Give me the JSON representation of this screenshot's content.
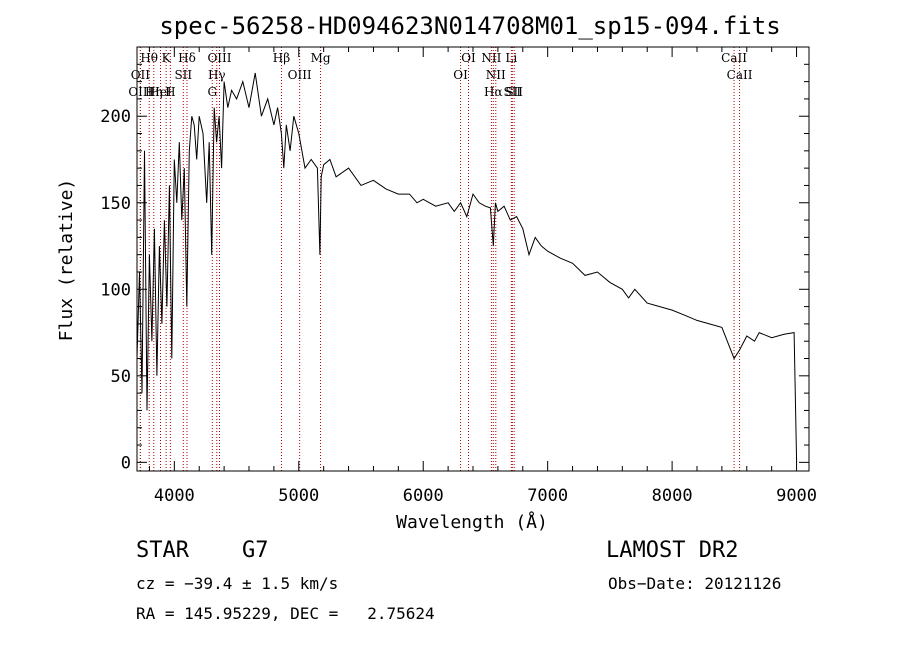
{
  "chart_data": {
    "type": "line",
    "title": "spec-56258-HD094623N014708M01_sp15-094.fits",
    "xlabel": "Wavelength (Å)",
    "ylabel": "Flux (relative)",
    "xlim": [
      3700,
      9100
    ],
    "ylim": [
      -5,
      240
    ],
    "xticks": [
      4000,
      5000,
      6000,
      7000,
      8000,
      9000
    ],
    "yticks": [
      0,
      50,
      100,
      150,
      200
    ],
    "grid": false,
    "series": [
      {
        "x": [
          3700,
          3720,
          3740,
          3760,
          3780,
          3800,
          3820,
          3840,
          3860,
          3880,
          3900,
          3920,
          3940,
          3960,
          3980,
          4000,
          4020,
          4040,
          4060,
          4080,
          4100,
          4120,
          4140,
          4160,
          4180,
          4200,
          4230,
          4260,
          4280,
          4300,
          4320,
          4340,
          4360,
          4380,
          4400,
          4430,
          4460,
          4500,
          4550,
          4600,
          4650,
          4700,
          4750,
          4800,
          4830,
          4860,
          4880,
          4900,
          4930,
          4960,
          5000,
          5050,
          5100,
          5150,
          5170,
          5180,
          5200,
          5250,
          5300,
          5400,
          5500,
          5600,
          5700,
          5800,
          5890,
          5950,
          6000,
          6100,
          6200,
          6250,
          6300,
          6350,
          6400,
          6450,
          6500,
          6540,
          6563,
          6580,
          6600,
          6650,
          6700,
          6750,
          6800,
          6850,
          6900,
          6950,
          7000,
          7100,
          7200,
          7300,
          7400,
          7500,
          7600,
          7650,
          7700,
          7800,
          7900,
          8000,
          8100,
          8200,
          8300,
          8400,
          8498,
          8542,
          8600,
          8662,
          8700,
          8800,
          8900,
          8980,
          9000
        ],
        "y": [
          60,
          110,
          40,
          180,
          30,
          120,
          70,
          135,
          50,
          125,
          80,
          140,
          90,
          160,
          60,
          175,
          150,
          185,
          140,
          170,
          90,
          180,
          200,
          195,
          175,
          200,
          190,
          150,
          185,
          120,
          205,
          185,
          200,
          170,
          220,
          205,
          215,
          210,
          220,
          205,
          225,
          200,
          210,
          195,
          205,
          190,
          170,
          195,
          180,
          200,
          190,
          170,
          175,
          170,
          120,
          165,
          172,
          175,
          165,
          170,
          160,
          163,
          158,
          155,
          155,
          150,
          152,
          148,
          150,
          145,
          150,
          142,
          155,
          150,
          148,
          147,
          125,
          150,
          145,
          148,
          140,
          142,
          135,
          120,
          130,
          125,
          122,
          118,
          115,
          108,
          110,
          104,
          100,
          95,
          100,
          92,
          90,
          88,
          85,
          82,
          80,
          78,
          60,
          65,
          73,
          70,
          75,
          72,
          74,
          75,
          0
        ]
      }
    ],
    "annotations": [
      {
        "label": "Hθ",
        "x": 3798
      },
      {
        "label": "OII",
        "x": 3727
      },
      {
        "label": "OIII",
        "x": 3727
      },
      {
        "label": "K",
        "x": 3934
      },
      {
        "label": "HeI",
        "x": 3889
      },
      {
        "label": "Hη",
        "x": 3835
      },
      {
        "label": "Hδ",
        "x": 4102
      },
      {
        "label": "SII",
        "x": 4072
      },
      {
        "label": "H",
        "x": 3968
      },
      {
        "label": "OIII",
        "x": 4363
      },
      {
        "label": "Hγ",
        "x": 4341
      },
      {
        "label": "G",
        "x": 4305
      },
      {
        "label": "Mg",
        "x": 5175
      },
      {
        "label": "OIII",
        "x": 5007
      },
      {
        "label": "Hβ",
        "x": 4861
      },
      {
        "label": "OI",
        "x": 6364
      },
      {
        "label": "OI",
        "x": 6300
      },
      {
        "label": "NII",
        "x": 6548
      },
      {
        "label": "NII",
        "x": 6583
      },
      {
        "label": "Hα",
        "x": 6563
      },
      {
        "label": "Li",
        "x": 6708
      },
      {
        "label": "SII",
        "x": 6716
      },
      {
        "label": "SII",
        "x": 6731
      },
      {
        "label": "CaII",
        "x": 8498
      },
      {
        "label": "CaII",
        "x": 8542
      }
    ]
  },
  "info": {
    "object_class": "STAR",
    "subclass": "G7",
    "survey": "LAMOST DR2",
    "cz": "cz = −39.4 ± 1.5 km/s",
    "obs_date": "Obs−Date: 20121126",
    "radec": "RA = 145.95229, DEC =   2.75624"
  },
  "colors": {
    "line": "#000000",
    "marker": "#b00000"
  }
}
